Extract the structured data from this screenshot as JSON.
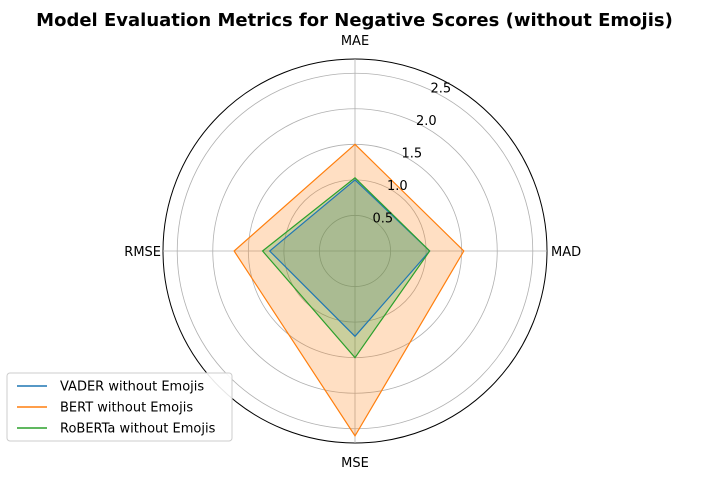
{
  "chart_data": {
    "type": "radar",
    "title": "Model Evaluation Metrics for Negative Scores (without Emojis)",
    "axes": [
      "MAE",
      "MAD",
      "MSE",
      "RMSE"
    ],
    "rlim": [
      0,
      2.7
    ],
    "r_ticks": [
      0.5,
      1.0,
      1.5,
      2.0,
      2.5
    ],
    "r_tick_labels": [
      "0.5",
      "1.0",
      "1.5",
      "2.0",
      "2.5"
    ],
    "grid": true,
    "legend_position": "lower-left",
    "series": [
      {
        "name": "VADER without Emojis",
        "values": [
          1.0,
          1.05,
          1.2,
          1.2
        ],
        "color": "#1f77b4"
      },
      {
        "name": "BERT without Emojis",
        "values": [
          1.5,
          1.53,
          2.6,
          1.7
        ],
        "color": "#ff7f0e"
      },
      {
        "name": "RoBERTa without Emojis",
        "values": [
          1.03,
          1.05,
          1.5,
          1.3
        ],
        "color": "#2ca02c"
      }
    ]
  }
}
